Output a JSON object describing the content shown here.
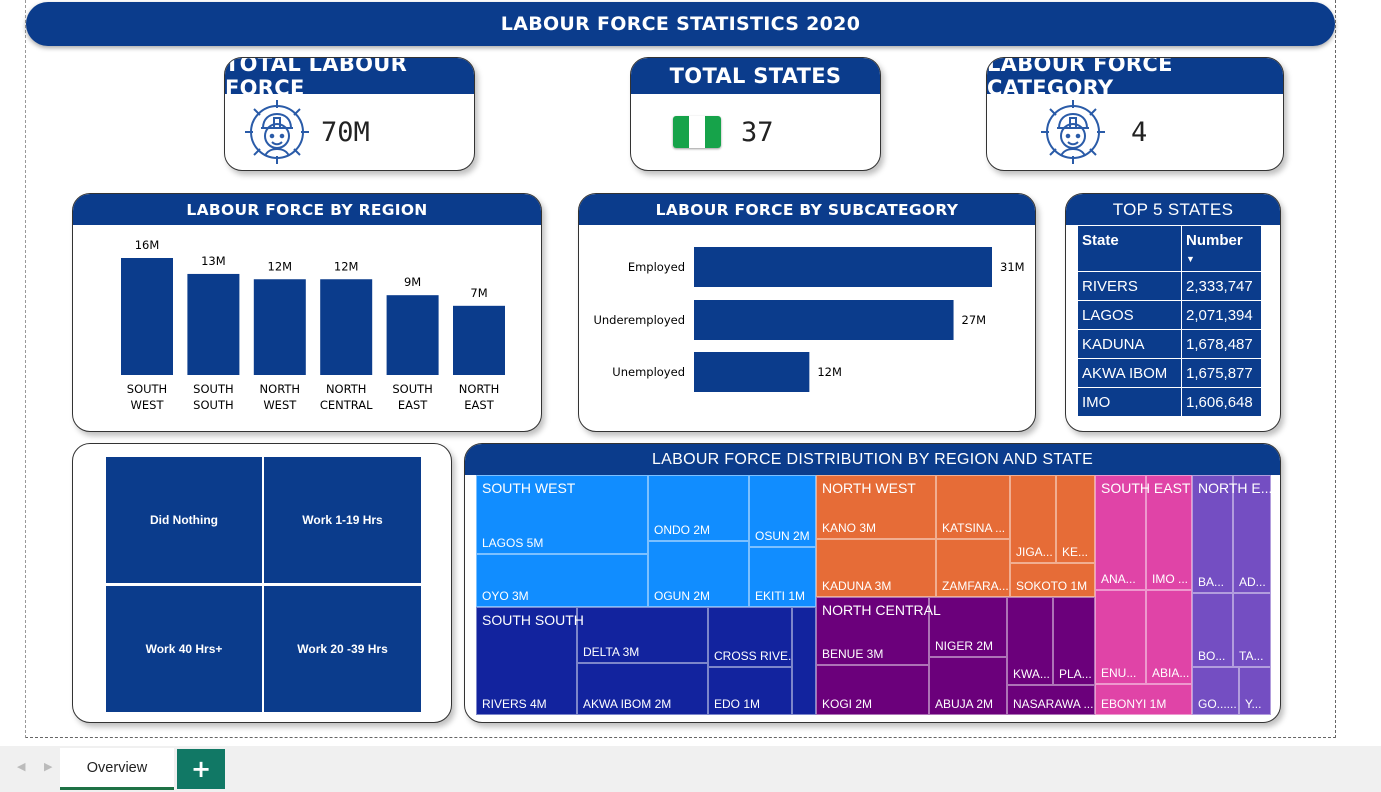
{
  "title": "LABOUR FORCE STATISTICS 2020",
  "kpis": {
    "total_labour_force": {
      "label": "TOTAL LABOUR FORCE",
      "value": "70M",
      "icon": "worker-gear-icon"
    },
    "total_states": {
      "label": "TOTAL STATES",
      "value": "37",
      "icon": "nigeria-flag-icon"
    },
    "labour_force_category": {
      "label": "LABOUR FORCE CATEGORY",
      "value": "4",
      "icon": "worker-gear-icon"
    }
  },
  "region_chart": {
    "title": "LABOUR FORCE BY REGION",
    "chart_data": {
      "type": "bar",
      "categories": [
        [
          "SOUTH",
          "WEST"
        ],
        [
          "SOUTH",
          "SOUTH"
        ],
        [
          "NORTH",
          "WEST"
        ],
        [
          "NORTH",
          "CENTRAL"
        ],
        [
          "SOUTH",
          "EAST"
        ],
        [
          "NORTH",
          "EAST"
        ]
      ],
      "values": [
        16,
        13,
        12,
        12,
        9,
        7
      ],
      "labels": [
        "16M",
        "13M",
        "12M",
        "12M",
        "9M",
        "7M"
      ],
      "unit": "M",
      "color": "#0b3c8c"
    }
  },
  "subcategory_chart": {
    "title": "LABOUR FORCE BY SUBCATEGORY",
    "chart_data": {
      "type": "bar",
      "orientation": "horizontal",
      "categories": [
        "Employed",
        "Underemployed",
        "Unemployed"
      ],
      "values": [
        31,
        27,
        12
      ],
      "labels": [
        "31M",
        "27M",
        "12M"
      ],
      "color": "#0b3c8c"
    }
  },
  "top5": {
    "title": "TOP 5 STATES",
    "headers": [
      "State",
      "Number"
    ],
    "rows": [
      [
        "RIVERS",
        "2,333,747"
      ],
      [
        "LAGOS",
        "2,071,394"
      ],
      [
        "KADUNA",
        "1,678,487"
      ],
      [
        "AKWA IBOM",
        "1,675,877"
      ],
      [
        "IMO",
        "1,606,648"
      ]
    ]
  },
  "hours_matrix": {
    "tiles": [
      "Did Nothing",
      "Work 1-19 Hrs",
      "Work 40 Hrs+",
      "Work 20 -39 Hrs"
    ]
  },
  "treemap": {
    "title": "LABOUR FORCE DISTRIBUTION BY REGION AND STATE",
    "regions": {
      "south_west": {
        "label": "SOUTH WEST",
        "color": "#118dff",
        "states": [
          "LAGOS 5M",
          "OYO 3M",
          "ONDO 2M",
          "OGUN 2M",
          "OSUN 2M",
          "EKITI 1M"
        ]
      },
      "south_south": {
        "label": "SOUTH SOUTH",
        "color": "#12239e",
        "states": [
          "RIVERS 4M",
          "DELTA 3M",
          "AKWA IBOM 2M",
          "CROSS RIVE...",
          "EDO 1M"
        ]
      },
      "north_west": {
        "label": "NORTH WEST",
        "color": "#e66c37",
        "states": [
          "KANO 3M",
          "KADUNA 3M",
          "KATSINA ...",
          "ZAMFARA...",
          "JIGA...",
          "KE...",
          "SOKOTO 1M"
        ]
      },
      "north_central": {
        "label": "NORTH CENTRAL",
        "color": "#6b007b",
        "states": [
          "BENUE 3M",
          "KOGI 2M",
          "NIGER 2M",
          "ABUJA 2M",
          "KWA...",
          "PLA...",
          "NASARAWA ..."
        ]
      },
      "south_east": {
        "label": "SOUTH EAST",
        "color": "#e044a7",
        "states": [
          "ANA...",
          "IMO ...",
          "ENU...",
          "ABIA...",
          "EBONYI 1M"
        ]
      },
      "north_east": {
        "label": "NORTH E...",
        "color": "#744ec2",
        "states": [
          "BA...",
          "AD...",
          "BO...",
          "TA...",
          "GO......",
          "Y..."
        ]
      }
    }
  },
  "tabs": {
    "active": "Overview",
    "add": "+"
  }
}
